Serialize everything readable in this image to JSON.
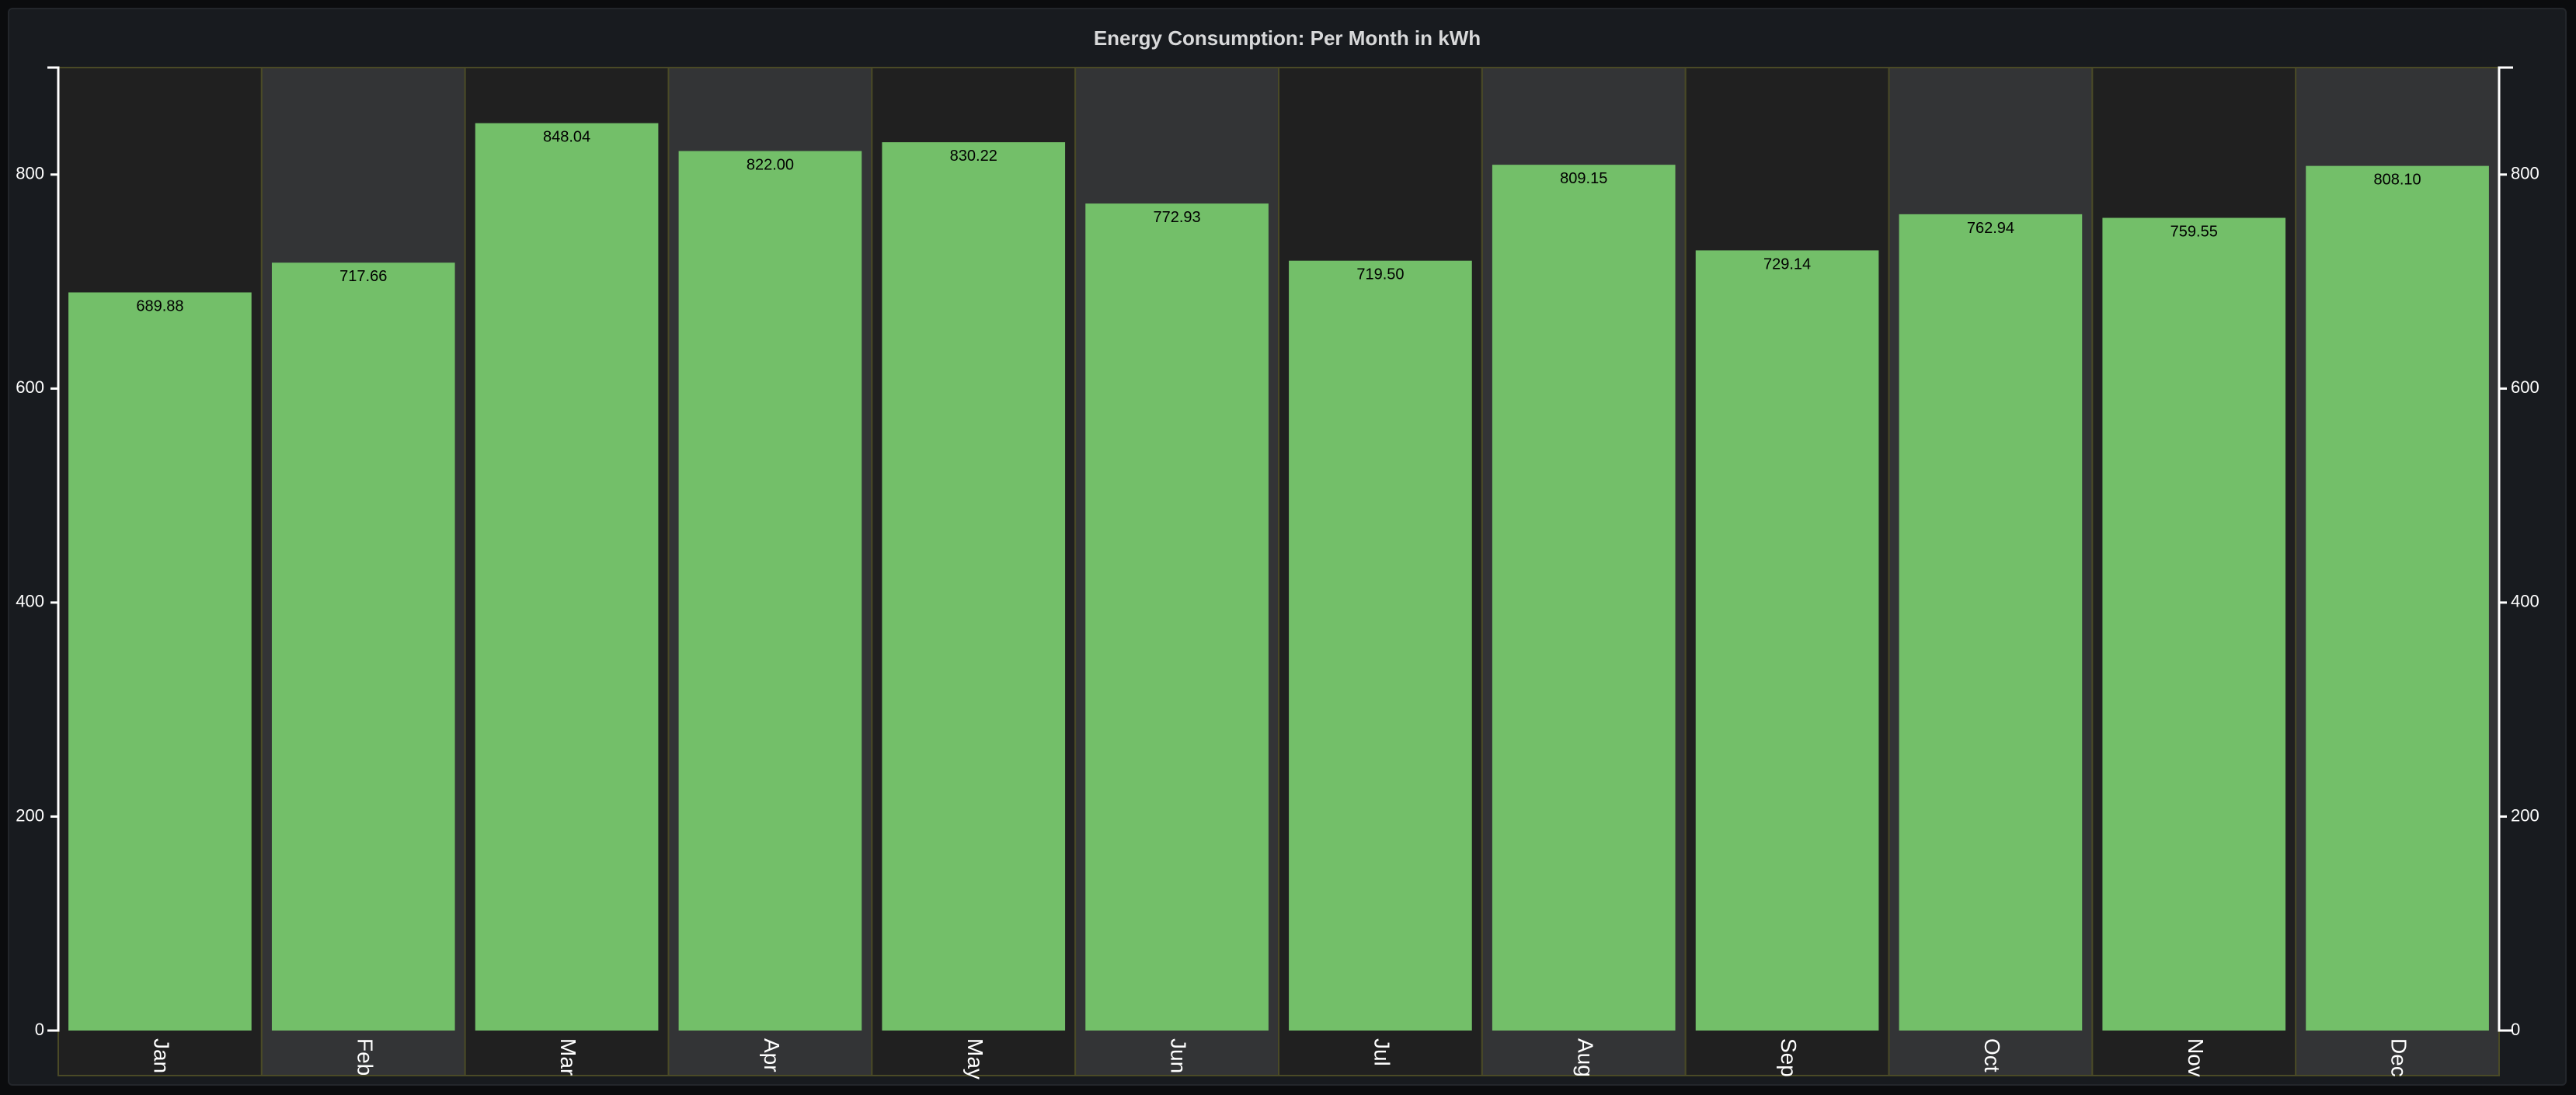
{
  "panel": {
    "title": "Energy Consumption: Per Month in kWh"
  },
  "chart_data": {
    "type": "bar",
    "title": "Energy Consumption: Per Month in kWh",
    "categories": [
      "Jan",
      "Feb",
      "Mar",
      "Apr",
      "May",
      "Jun",
      "Jul",
      "Aug",
      "Sep",
      "Oct",
      "Nov",
      "Dec"
    ],
    "values": [
      689.88,
      717.66,
      848.04,
      822.0,
      830.22,
      772.93,
      719.5,
      809.15,
      729.14,
      762.94,
      759.55,
      808.1
    ],
    "value_labels": [
      "689.88",
      "717.66",
      "848.04",
      "822.00",
      "830.22",
      "772.93",
      "719.50",
      "809.15",
      "729.14",
      "762.94",
      "759.55",
      "808.10"
    ],
    "xlabel": "",
    "ylabel": "",
    "ylim": [
      0,
      900
    ],
    "y_ticks": [
      0,
      200,
      400,
      600,
      800
    ],
    "y_axes": [
      "left",
      "right"
    ],
    "grid": false,
    "legend": "none",
    "colors": {
      "bar": "#73bf69",
      "band_odd": "#202020",
      "band_even": "#333436",
      "band_border": "#4a4a26",
      "axis": "#ffffff"
    }
  }
}
